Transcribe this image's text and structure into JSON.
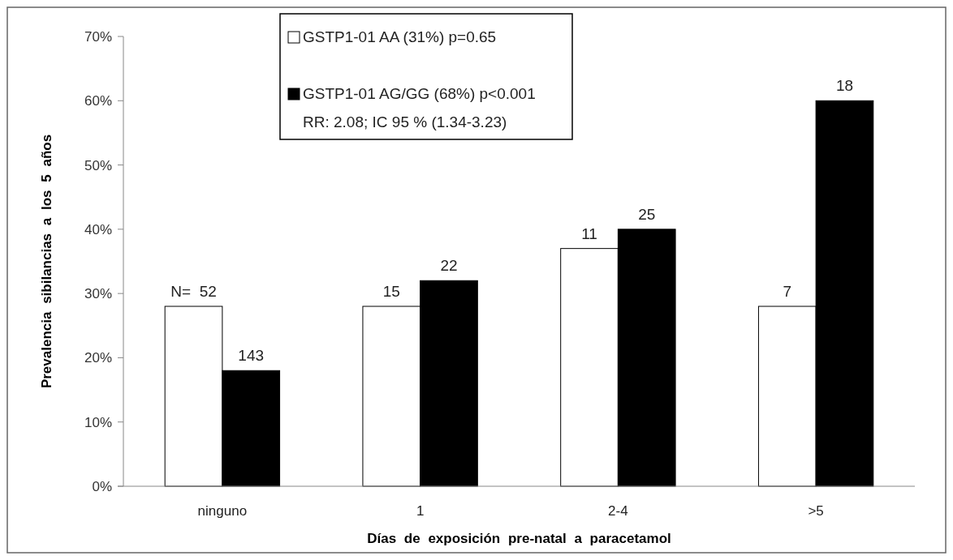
{
  "chart_data": {
    "type": "bar",
    "xlabel": "Días de exposición pre-natal a paracetamol",
    "ylabel": "Prevalencia sibilancias a los 5 años",
    "categories": [
      "ninguno",
      "1",
      "2-4",
      ">5"
    ],
    "series": [
      {
        "name": "GSTP1-01 AA (31%) p=0.65",
        "color": "#ffffff",
        "values": [
          28,
          28,
          37,
          28
        ]
      },
      {
        "name": "GSTP1-01 AG/GG (68%) p<0.001",
        "color": "#000000",
        "values": [
          18,
          32,
          40,
          60
        ]
      }
    ],
    "annotations": [
      "RR: 2.08; IC 95 % (1.34-3.23)",
      {
        "text": "N=  52",
        "x": "ninguno",
        "y": 28
      },
      {
        "text": "143",
        "x": "ninguno",
        "y": 18
      },
      {
        "text": "15",
        "x": "1",
        "y": 28
      },
      {
        "text": "22",
        "x": "1",
        "y": 32
      },
      {
        "text": "11",
        "x": "2-4",
        "y": 37
      },
      {
        "text": "25",
        "x": "2-4",
        "y": 40
      },
      {
        "text": "7",
        "x": ">5",
        "y": 28
      },
      {
        "text": "18",
        "x": ">5",
        "y": 60
      }
    ],
    "ylim": [
      0,
      70
    ],
    "yticks": [
      {
        "value": 0,
        "label": "0%"
      },
      {
        "value": 10,
        "label": "10%"
      },
      {
        "value": 20,
        "label": "20%"
      },
      {
        "value": 30,
        "label": "30%"
      },
      {
        "value": 40,
        "label": "40%"
      },
      {
        "value": 50,
        "label": "50%"
      },
      {
        "value": 60,
        "label": "60%"
      },
      {
        "value": 70,
        "label": "70%"
      }
    ],
    "grid": false,
    "legend": "top left"
  }
}
